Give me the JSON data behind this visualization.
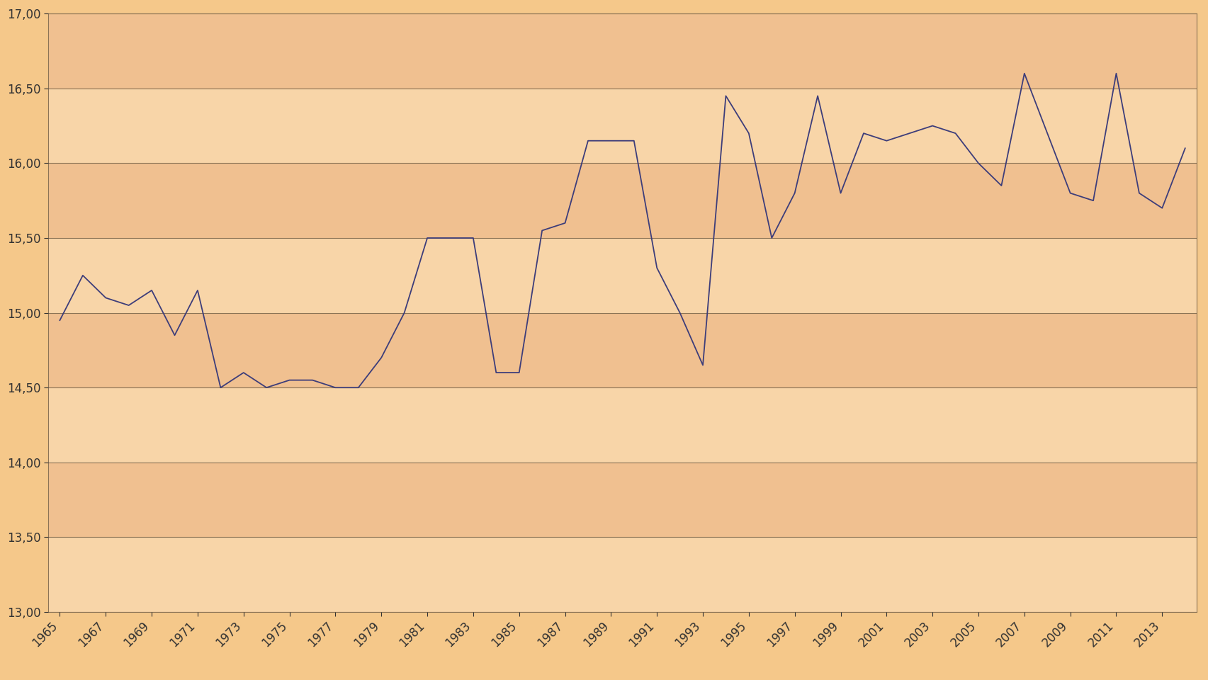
{
  "years": [
    1965,
    1966,
    1967,
    1968,
    1969,
    1970,
    1971,
    1972,
    1973,
    1974,
    1975,
    1976,
    1977,
    1978,
    1979,
    1980,
    1981,
    1982,
    1983,
    1984,
    1985,
    1986,
    1987,
    1988,
    1989,
    1990,
    1991,
    1992,
    1993,
    1994,
    1995,
    1996,
    1997,
    1998,
    1999,
    2000,
    2001,
    2002,
    2003,
    2004,
    2005,
    2006,
    2007,
    2008,
    2009,
    2010,
    2011,
    2012,
    2013,
    2014
  ],
  "values": [
    14.95,
    15.25,
    15.1,
    15.05,
    15.15,
    14.85,
    15.15,
    14.5,
    14.6,
    14.5,
    14.55,
    14.55,
    14.5,
    14.5,
    14.7,
    15.0,
    15.5,
    15.5,
    15.5,
    14.6,
    14.6,
    15.55,
    15.6,
    16.15,
    16.15,
    16.15,
    15.3,
    15.0,
    14.65,
    16.45,
    16.2,
    15.5,
    15.8,
    16.45,
    15.8,
    16.2,
    16.15,
    16.2,
    16.25,
    16.2,
    16.0,
    15.85,
    16.6,
    16.2,
    15.8,
    15.75,
    16.6,
    15.8,
    15.7,
    16.1
  ],
  "ylim": [
    13.0,
    17.0
  ],
  "yticks": [
    13.0,
    13.5,
    14.0,
    14.5,
    15.0,
    15.5,
    16.0,
    16.5,
    17.0
  ],
  "xtick_step": 2,
  "line_color": "#3d3d7a",
  "plot_bg_light": "#f8d5a8",
  "plot_bg_dark": "#f0c090",
  "grid_color": "#8b7355",
  "tick_label_color": "#333333",
  "figure_bg": "#f5c88a",
  "band_colors": [
    "#f8d5a8",
    "#f0c090"
  ]
}
